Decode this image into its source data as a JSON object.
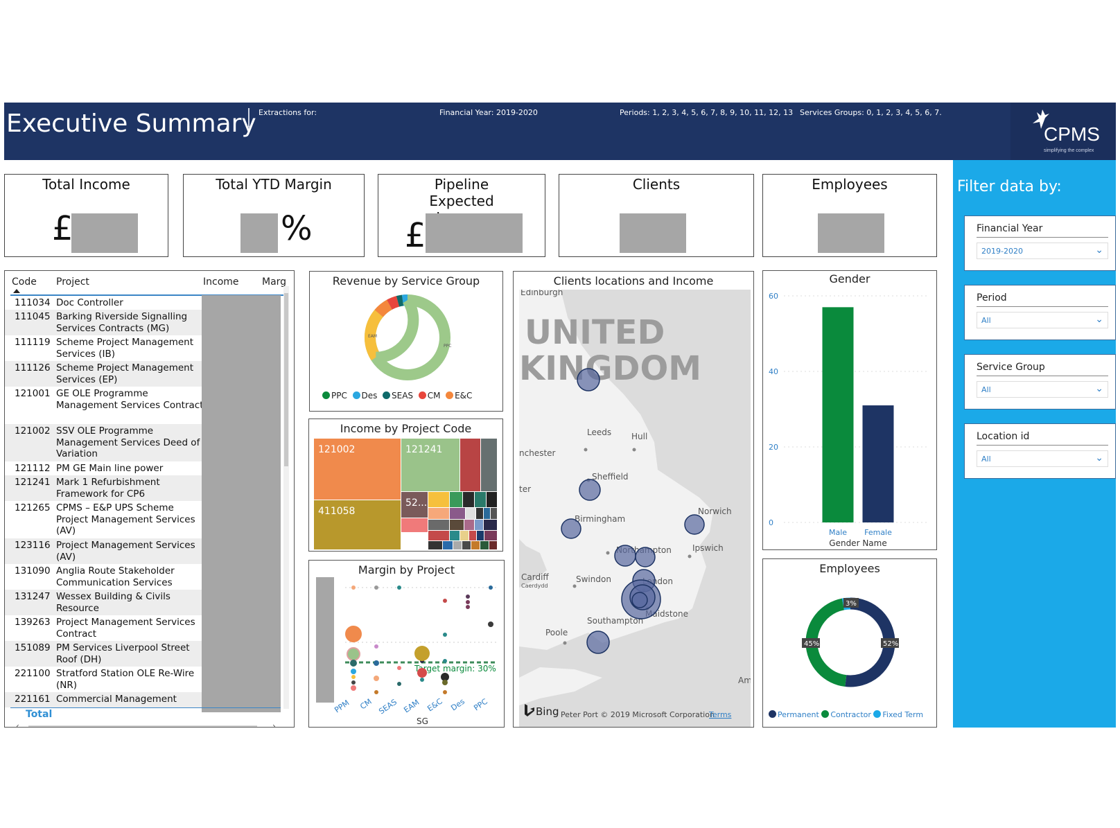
{
  "header": {
    "title": "Executive Summary",
    "extractions": "Extractions for:",
    "financial_year": "Financial Year: 2019-2020",
    "periods": "Periods: 1, 2, 3, 4, 5, 6, 7, 8, 9, 10, 11, 12, 13",
    "services_groups": "Services Groups: 0, 1, 2, 3, 4, 5, 6, 7.",
    "logo_text": "CPMS",
    "logo_tagline": "simplifying the complex"
  },
  "kpis": {
    "total_income": {
      "label": "Total Income",
      "symbol": "£"
    },
    "ytd_margin": {
      "label": "Total YTD Margin",
      "symbol": "%"
    },
    "pipeline": {
      "label": "Pipeline Expected Income",
      "symbol": "£"
    },
    "clients": {
      "label": "Clients"
    },
    "employees": {
      "label": "Employees"
    }
  },
  "table": {
    "columns": [
      "Code",
      "Project",
      "Income",
      "Marg"
    ],
    "rows": [
      {
        "code": "111034",
        "project": "Doc Controller"
      },
      {
        "code": "111045",
        "project": "Barking Riverside Signalling Services Contracts (MG)"
      },
      {
        "code": "111119",
        "project": "Scheme Project Management Services (IB)"
      },
      {
        "code": "111126",
        "project": "Scheme Project Management Services (EP)"
      },
      {
        "code": "121001",
        "project": "GE OLE Programme Management Services Contract"
      },
      {
        "code": "121002",
        "project": "SSV OLE Programme Management Services Deed of Variation"
      },
      {
        "code": "121112",
        "project": "PM GE Main line power"
      },
      {
        "code": "121241",
        "project": "Mark 1 Refurbishment Framework for CP6"
      },
      {
        "code": "121265",
        "project": "CPMS – E&P UPS Scheme Project Management Services (AV)"
      },
      {
        "code": "123116",
        "project": "Project Management Services (AV)"
      },
      {
        "code": "131090",
        "project": "Anglia Route Stakeholder Communication Services"
      },
      {
        "code": "131247",
        "project": "Wessex Building & Civils Resource"
      },
      {
        "code": "139263",
        "project": "Project Management Services Contract"
      },
      {
        "code": "151089",
        "project": "PM Services Liverpool Street Roof (DH)"
      },
      {
        "code": "221100",
        "project": "Stratford Station OLE Re-Wire (NR)"
      },
      {
        "code": "221161",
        "project": "Commercial Management"
      }
    ],
    "total_label": "Total"
  },
  "revenue_by_service_group": {
    "title": "Revenue by Service Group",
    "legend": [
      {
        "name": "PPC",
        "color": "#0a8a3c"
      },
      {
        "name": "Des",
        "color": "#2aa7e0"
      },
      {
        "name": "SEAS",
        "color": "#0f6a6a"
      },
      {
        "name": "CM",
        "color": "#e8463c"
      },
      {
        "name": "E&C",
        "color": "#f4873c"
      }
    ],
    "slice_labels": [
      "PPC",
      "EAM"
    ]
  },
  "income_by_project": {
    "title": "Income by Project Code",
    "labels": [
      "121002",
      "121241",
      "411058",
      "52..."
    ]
  },
  "margin_by_project": {
    "title": "Margin by Project",
    "target": "Target margin: 30%",
    "xlabel": "SG",
    "categories": [
      "PPM",
      "CM",
      "SEAS",
      "EAM",
      "E&C",
      "Des",
      "PPC"
    ]
  },
  "map": {
    "title": "Clients locations and Income",
    "country_line1": "UNITED",
    "country_line2": "KINGDOM",
    "places": [
      "Edinburgh",
      "Leeds",
      "Hull",
      "nchester",
      "Sheffield",
      "ter",
      "Birmingham",
      "Norwich",
      "Northampton",
      "Ipswich",
      "Cardiff",
      "Caerdydd",
      "Swindon",
      "London",
      "Maidstone",
      "Southampton",
      "Poole",
      "Am"
    ],
    "bing": "Bing",
    "copyright": "Peter Port © 2019 Microsoft Corporation",
    "terms": "Terms"
  },
  "gender": {
    "title": "Gender",
    "xlabel": "Gender Name",
    "categories": [
      "Male",
      "Female"
    ],
    "values": [
      57,
      31
    ],
    "ylim": [
      0,
      60
    ],
    "yticks": [
      0,
      20,
      40,
      60
    ],
    "colors": [
      "#0a8a3c",
      "#1e3464"
    ]
  },
  "employees_chart": {
    "title": "Employees",
    "slices": [
      {
        "name": "Permanent",
        "value": 52,
        "label": "52%",
        "color": "#1e3464"
      },
      {
        "name": "Contractor",
        "value": 45,
        "label": "45%",
        "color": "#0a8a3c"
      },
      {
        "name": "Fixed Term",
        "value": 3,
        "label": "3%",
        "color": "#1ba9e8"
      }
    ]
  },
  "filters": {
    "title": "Filter data by:",
    "items": [
      {
        "label": "Financial Year",
        "value": "2019-2020"
      },
      {
        "label": "Period",
        "value": "All"
      },
      {
        "label": "Service Group",
        "value": "All"
      },
      {
        "label": "Location id",
        "value": "All"
      }
    ]
  }
}
